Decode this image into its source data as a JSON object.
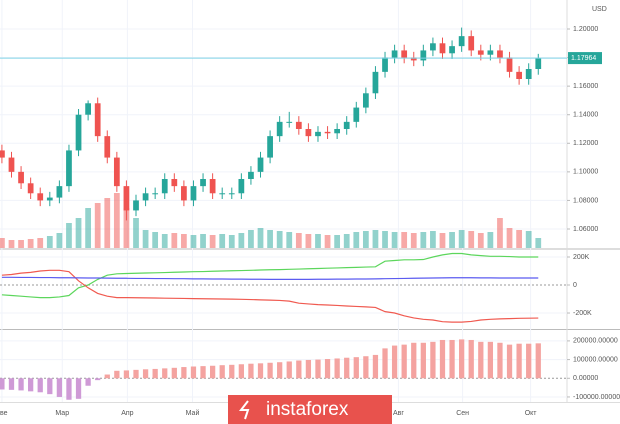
{
  "chart_data": [
    {
      "type": "candlestick",
      "unit_label": "USD",
      "open": [
        1.115,
        1.11,
        1.1,
        1.092,
        1.085,
        1.08,
        1.082,
        1.09,
        1.115,
        1.14,
        1.148,
        1.125,
        1.11,
        1.09,
        1.073,
        1.08,
        1.085,
        1.085,
        1.095,
        1.09,
        1.08,
        1.09,
        1.095,
        1.085,
        1.085,
        1.085,
        1.095,
        1.1,
        1.11,
        1.125,
        1.135,
        1.135,
        1.13,
        1.125,
        1.128,
        1.127,
        1.13,
        1.135,
        1.145,
        1.155,
        1.17,
        1.18,
        1.185,
        1.18,
        1.178,
        1.185,
        1.19,
        1.183,
        1.188,
        1.195,
        1.185,
        1.182,
        1.185,
        1.18,
        1.17,
        1.165,
        1.172
      ],
      "high": [
        1.119,
        1.114,
        1.104,
        1.096,
        1.089,
        1.086,
        1.094,
        1.119,
        1.144,
        1.15,
        1.152,
        1.129,
        1.114,
        1.094,
        1.084,
        1.089,
        1.089,
        1.099,
        1.099,
        1.094,
        1.094,
        1.099,
        1.099,
        1.089,
        1.089,
        1.099,
        1.104,
        1.114,
        1.129,
        1.139,
        1.142,
        1.139,
        1.134,
        1.132,
        1.132,
        1.134,
        1.139,
        1.149,
        1.159,
        1.174,
        1.184,
        1.189,
        1.189,
        1.184,
        1.189,
        1.194,
        1.194,
        1.192,
        1.201,
        1.199,
        1.189,
        1.189,
        1.189,
        1.184,
        1.174,
        1.176,
        1.1826
      ],
      "low": [
        1.106,
        1.096,
        1.088,
        1.081,
        1.076,
        1.076,
        1.078,
        1.086,
        1.111,
        1.136,
        1.121,
        1.106,
        1.086,
        1.066,
        1.069,
        1.076,
        1.081,
        1.081,
        1.086,
        1.076,
        1.076,
        1.086,
        1.081,
        1.081,
        1.081,
        1.081,
        1.091,
        1.096,
        1.106,
        1.121,
        1.131,
        1.126,
        1.121,
        1.121,
        1.123,
        1.123,
        1.126,
        1.131,
        1.141,
        1.151,
        1.166,
        1.176,
        1.176,
        1.174,
        1.174,
        1.181,
        1.179,
        1.179,
        1.184,
        1.181,
        1.178,
        1.178,
        1.176,
        1.166,
        1.161,
        1.161,
        1.168
      ],
      "close": [
        1.11,
        1.1,
        1.092,
        1.085,
        1.08,
        1.082,
        1.09,
        1.115,
        1.14,
        1.148,
        1.125,
        1.11,
        1.09,
        1.073,
        1.08,
        1.085,
        1.085,
        1.095,
        1.09,
        1.08,
        1.09,
        1.095,
        1.085,
        1.085,
        1.085,
        1.095,
        1.1,
        1.11,
        1.125,
        1.135,
        1.135,
        1.13,
        1.125,
        1.128,
        1.127,
        1.13,
        1.135,
        1.145,
        1.155,
        1.17,
        1.18,
        1.185,
        1.18,
        1.178,
        1.185,
        1.19,
        1.183,
        1.188,
        1.195,
        1.185,
        1.182,
        1.185,
        1.18,
        1.17,
        1.165,
        1.172,
        1.1796
      ],
      "volume": [
        10,
        8,
        8,
        9,
        10,
        12,
        15,
        25,
        30,
        40,
        45,
        50,
        55,
        40,
        30,
        18,
        16,
        14,
        15,
        14,
        13,
        14,
        13,
        14,
        13,
        15,
        18,
        20,
        18,
        17,
        16,
        15,
        14,
        14,
        13,
        13,
        14,
        16,
        17,
        18,
        17,
        16,
        16,
        15,
        16,
        17,
        15,
        16,
        18,
        17,
        15,
        16,
        30,
        20,
        18,
        17,
        10
      ],
      "volume_lim": [
        0,
        80
      ],
      "up_color": "#26a69a",
      "down_color": "#ef5350",
      "last_price": 1.17964,
      "last_price_color": "#26a69a",
      "xlim": [
        -0.2,
        59
      ],
      "xticks": [
        {
          "value": 0,
          "label": "ве"
        },
        {
          "value": 6.3,
          "label": "Мар"
        },
        {
          "value": 13.1,
          "label": "Апр"
        },
        {
          "value": 19.9,
          "label": "Май"
        },
        {
          "value": 41.4,
          "label": "Авг"
        },
        {
          "value": 48.1,
          "label": "Сен"
        },
        {
          "value": 55.2,
          "label": "Окт"
        }
      ],
      "ylim": [
        1.0467,
        1.2203
      ],
      "yticks": [
        {
          "value": 1.06,
          "label": "1.06000"
        },
        {
          "value": 1.08,
          "label": "1.08000"
        },
        {
          "value": 1.1,
          "label": "1.10000"
        },
        {
          "value": 1.12,
          "label": "1.12000"
        },
        {
          "value": 1.14,
          "label": "1.14000"
        },
        {
          "value": 1.16,
          "label": "1.16000"
        },
        {
          "value": 1.18,
          "label": "1.18000"
        },
        {
          "value": 1.2,
          "label": "1.20000"
        }
      ]
    },
    {
      "type": "line",
      "xlim": [
        -0.2,
        59
      ],
      "ylim": [
        -307000,
        250000
      ],
      "yticks": [
        {
          "value": 200000,
          "label": "200K"
        },
        0,
        {
          "value": -200000,
          "label": "-200K"
        }
      ],
      "series": [
        {
          "color": "#5cd65c",
          "values": [
            -70000,
            -75000,
            -80000,
            -85000,
            -90000,
            -90000,
            -85000,
            -75000,
            -20000,
            0,
            40000,
            70000,
            80000,
            82000,
            84000,
            86000,
            87000,
            89000,
            91000,
            93000,
            95000,
            96000,
            98000,
            100000,
            102000,
            103000,
            105000,
            107000,
            109000,
            110000,
            112000,
            114000,
            116000,
            118000,
            120000,
            122000,
            124000,
            126000,
            128000,
            130000,
            170000,
            175000,
            180000,
            180000,
            182000,
            200000,
            215000,
            225000,
            225000,
            215000,
            210000,
            205000,
            205000,
            203000,
            200000,
            200000,
            200000
          ]
        },
        {
          "color": "#f05a50",
          "values": [
            70000,
            75000,
            85000,
            90000,
            100000,
            105000,
            105000,
            95000,
            30000,
            -20000,
            -60000,
            -80000,
            -90000,
            -90000,
            -91000,
            -92000,
            -93000,
            -94000,
            -95000,
            -96000,
            -97000,
            -98000,
            -99000,
            -100000,
            -101000,
            -102000,
            -104000,
            -106000,
            -108000,
            -110000,
            -115000,
            -130000,
            -135000,
            -140000,
            -143000,
            -146000,
            -150000,
            -153000,
            -156000,
            -160000,
            -190000,
            -200000,
            -220000,
            -235000,
            -245000,
            -250000,
            -262000,
            -265000,
            -265000,
            -260000,
            -250000,
            -245000,
            -242000,
            -240000,
            -238000,
            -237000,
            -236000
          ]
        },
        {
          "color": "#5b5bf0",
          "values": [
            55000,
            55000,
            54000,
            54000,
            53000,
            53000,
            52000,
            52000,
            51000,
            50000,
            50000,
            49000,
            48000,
            48000,
            47000,
            47000,
            46000,
            46000,
            45000,
            45000,
            44000,
            44000,
            43000,
            43000,
            42000,
            42000,
            41000,
            41000,
            40000,
            40000,
            40000,
            40000,
            40000,
            41000,
            41000,
            42000,
            42000,
            43000,
            43000,
            44000,
            45000,
            46000,
            47000,
            48000,
            49000,
            50000,
            51000,
            52000,
            52000,
            52000,
            51000,
            51000,
            50000,
            50000,
            50000,
            50000,
            50000
          ]
        }
      ]
    },
    {
      "type": "bar",
      "xlim": [
        -0.2,
        59
      ],
      "ylim": [
        -127000,
        253000
      ],
      "positive_color": "#f4a3a0",
      "negative_color": "#cf9ad6",
      "yticks": [
        {
          "value": 200000,
          "label": "200000.00000"
        },
        {
          "value": 100000,
          "label": "100000.00000"
        },
        {
          "value": 0,
          "label": "0.00000"
        },
        {
          "value": -100000,
          "label": "-100000.00000"
        }
      ],
      "values": [
        -60000,
        -62000,
        -65000,
        -70000,
        -75000,
        -85000,
        -100000,
        -115000,
        -110000,
        -40000,
        -10000,
        20000,
        40000,
        42000,
        45000,
        48000,
        50000,
        53000,
        56000,
        60000,
        63000,
        65000,
        67000,
        70000,
        72000,
        75000,
        78000,
        80000,
        83000,
        86000,
        90000,
        95000,
        98000,
        100000,
        103000,
        106000,
        110000,
        113000,
        118000,
        125000,
        160000,
        175000,
        180000,
        190000,
        190000,
        195000,
        205000,
        205000,
        208000,
        205000,
        195000,
        195000,
        190000,
        180000,
        185000,
        185000,
        187000
      ]
    }
  ],
  "watermark": "instaforex"
}
